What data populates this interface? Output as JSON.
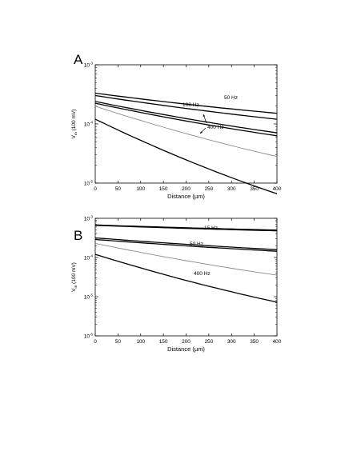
{
  "colors": {
    "black_series": "#000000",
    "gray_series": "#8a8a8a",
    "background": "#ffffff"
  },
  "chart_data": [
    {
      "type": "line",
      "panel_label": "A",
      "xlabel": "Distance (µm)",
      "ylabel": "V",
      "ylabel_sub": "m",
      "ylabel_unit": "(100 mV)",
      "yscale": "log",
      "xlim": [
        0,
        400
      ],
      "ylim_log10": [
        -5,
        -3
      ],
      "xticks": [
        "0",
        "50",
        "100",
        "150",
        "200",
        "250",
        "300",
        "350",
        "400"
      ],
      "yticks": [
        {
          "base": "10",
          "exp": "-5"
        },
        {
          "base": "10",
          "exp": "-4"
        },
        {
          "base": "10",
          "exp": "-3"
        }
      ],
      "grid": false,
      "annotations": [
        {
          "text": "50 Hz"
        },
        {
          "text": "100 Hz"
        },
        {
          "text": "400 Hz"
        }
      ],
      "series": [
        {
          "color": "black",
          "x": [
            0,
            400
          ],
          "log10_y": [
            -3.48,
            -3.82
          ]
        },
        {
          "color": "black",
          "x": [
            0,
            400
          ],
          "log10_y": [
            -3.52,
            -3.92
          ]
        },
        {
          "color": "black",
          "x": [
            0,
            400
          ],
          "log10_y": [
            -3.62,
            -4.15
          ]
        },
        {
          "color": "black",
          "x": [
            0,
            400
          ],
          "log10_y": [
            -3.65,
            -4.2
          ]
        },
        {
          "color": "gray",
          "x": [
            0,
            400
          ],
          "log10_y": [
            -3.7,
            -4.55
          ]
        },
        {
          "color": "black",
          "x": [
            0,
            400
          ],
          "log10_y": [
            -3.92,
            -5.18
          ]
        }
      ]
    },
    {
      "type": "line",
      "panel_label": "B",
      "xlabel": "Distance (µm)",
      "ylabel": "V",
      "ylabel_sub": "m",
      "ylabel_unit": "(100 mV)",
      "yscale": "log",
      "xlim": [
        0,
        400
      ],
      "ylim_log10": [
        -6,
        -3
      ],
      "xticks": [
        "0",
        "50",
        "100",
        "150",
        "200",
        "250",
        "300",
        "350",
        "400"
      ],
      "yticks": [
        {
          "base": "10",
          "exp": "-6"
        },
        {
          "base": "10",
          "exp": "-5"
        },
        {
          "base": "10",
          "exp": "-4"
        },
        {
          "base": "10",
          "exp": "-3"
        }
      ],
      "grid": false,
      "annotations": [
        {
          "text": "15 Hz"
        },
        {
          "text": "50 Hz"
        },
        {
          "text": "400 Hz"
        }
      ],
      "series": [
        {
          "color": "black",
          "x": [
            0,
            400
          ],
          "log10_y": [
            -3.17,
            -3.3
          ]
        },
        {
          "color": "black",
          "x": [
            0,
            400
          ],
          "log10_y": [
            -3.18,
            -3.32
          ]
        },
        {
          "color": "black",
          "x": [
            0,
            400
          ],
          "log10_y": [
            -3.5,
            -3.8
          ]
        },
        {
          "color": "black",
          "x": [
            0,
            400
          ],
          "log10_y": [
            -3.54,
            -3.84
          ]
        },
        {
          "color": "gray",
          "x": [
            0,
            400
          ],
          "log10_y": [
            -3.64,
            -4.45
          ]
        },
        {
          "color": "black",
          "x": [
            0,
            400
          ],
          "log10_y": [
            -3.92,
            -5.14
          ]
        }
      ]
    }
  ]
}
